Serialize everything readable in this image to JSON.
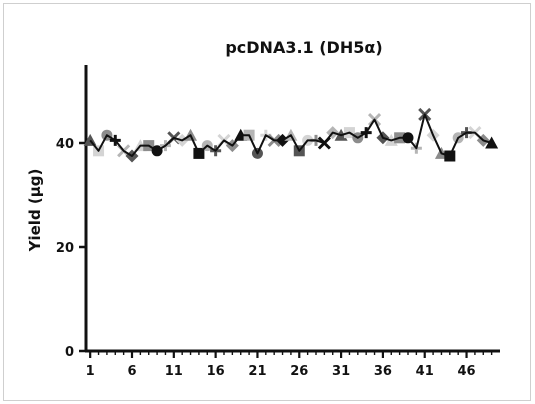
{
  "chart_data": {
    "type": "line",
    "title": "pcDNA3.1 (DH5α)",
    "xlabel": "",
    "ylabel": "Yield (µg)",
    "xlim": [
      0.5,
      50
    ],
    "ylim": [
      0,
      55
    ],
    "x_ticks": [
      1,
      6,
      11,
      16,
      21,
      26,
      31,
      36,
      41,
      46
    ],
    "y_ticks": [
      0,
      20,
      40
    ],
    "x": [
      1,
      2,
      3,
      4,
      5,
      6,
      7,
      8,
      9,
      10,
      11,
      12,
      13,
      14,
      15,
      16,
      17,
      18,
      19,
      20,
      21,
      22,
      23,
      24,
      25,
      26,
      27,
      28,
      29,
      30,
      31,
      32,
      33,
      34,
      35,
      36,
      37,
      38,
      39,
      40,
      41,
      42,
      43,
      44,
      45,
      46,
      47,
      48,
      49
    ],
    "values": [
      40.5,
      38.5,
      41.5,
      40.5,
      38.5,
      37.5,
      39.5,
      39.5,
      38.5,
      39.5,
      41,
      40.5,
      41.5,
      38,
      39.5,
      38.5,
      40.5,
      39.5,
      41.5,
      41.5,
      38,
      41.5,
      40.5,
      40.5,
      41.5,
      38.5,
      40.5,
      40.5,
      40,
      42,
      41.5,
      42,
      41,
      42,
      44.5,
      41,
      40.5,
      41,
      41,
      39,
      45.5,
      41.5,
      38,
      37.5,
      41,
      42,
      42,
      40.5,
      40
    ],
    "grid": false,
    "legend": "none",
    "line_color": "#111111",
    "marker_colors": [
      "#111111",
      "#555555",
      "#8c8c8c",
      "#b5b5b5",
      "#d4d4d4"
    ],
    "marker_shapes": [
      "circle",
      "square",
      "triangle",
      "diamond",
      "x",
      "plus"
    ]
  }
}
